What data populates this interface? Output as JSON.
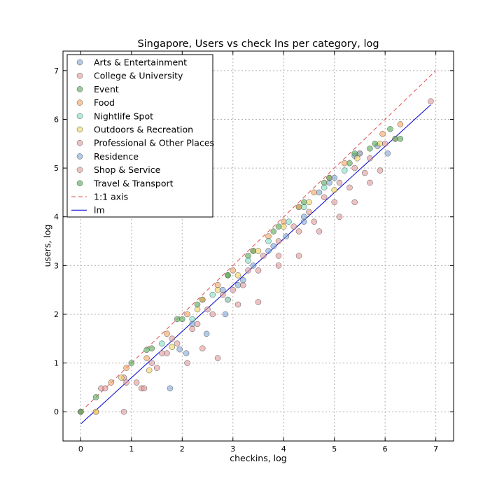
{
  "chart_data": {
    "type": "scatter",
    "title": "Singapore, Users vs check Ins per category, log",
    "xlabel": "checkins, log",
    "ylabel": "users, log",
    "xlim": [
      -0.35,
      7.35
    ],
    "ylim": [
      -0.6,
      7.4
    ],
    "xticks": [
      0,
      1,
      2,
      3,
      4,
      5,
      6,
      7
    ],
    "yticks": [
      0,
      1,
      2,
      3,
      4,
      5,
      6,
      7
    ],
    "grid": true,
    "legend_position": "top-left",
    "series": [
      {
        "name": "Arts & Entertainment",
        "color": "#7ea6d8",
        "points": [
          [
            0,
            0
          ],
          [
            1.76,
            0.48
          ],
          [
            1.95,
            1.28
          ],
          [
            2.08,
            1.2
          ],
          [
            2.48,
            1.6
          ],
          [
            2.85,
            2.0
          ],
          [
            3.1,
            2.6
          ],
          [
            3.4,
            3.0
          ],
          [
            3.7,
            3.3
          ],
          [
            4.05,
            3.6
          ],
          [
            4.4,
            3.9
          ],
          [
            4.7,
            4.5
          ],
          [
            5.0,
            4.8
          ],
          [
            5.4,
            5.25
          ],
          [
            5.85,
            5.45
          ],
          [
            6.05,
            5.3
          ]
        ]
      },
      {
        "name": "College & University",
        "color": "#e39a9a",
        "points": [
          [
            0,
            0
          ],
          [
            0.48,
            0.48
          ],
          [
            0.85,
            0.7
          ],
          [
            1.2,
            0.48
          ],
          [
            1.5,
            0.9
          ],
          [
            1.8,
            1.5
          ],
          [
            2.3,
            1.8
          ],
          [
            2.6,
            2.0
          ],
          [
            2.9,
            2.3
          ],
          [
            3.2,
            2.6
          ],
          [
            3.5,
            2.9
          ],
          [
            3.9,
            3.2
          ],
          [
            4.3,
            3.7
          ],
          [
            4.6,
            3.9
          ],
          [
            5.0,
            4.3
          ],
          [
            5.3,
            4.6
          ],
          [
            5.6,
            4.9
          ],
          [
            6.2,
            5.6
          ]
        ]
      },
      {
        "name": "Event",
        "color": "#52a852",
        "points": [
          [
            0,
            0
          ],
          [
            0.3,
            0.3
          ],
          [
            1.0,
            1.0
          ],
          [
            1.4,
            1.3
          ],
          [
            2.0,
            1.9
          ],
          [
            2.4,
            2.3
          ],
          [
            2.9,
            2.8
          ],
          [
            3.3,
            3.2
          ],
          [
            3.8,
            3.7
          ],
          [
            4.3,
            4.2
          ],
          [
            4.8,
            4.7
          ],
          [
            5.3,
            5.1
          ],
          [
            5.7,
            5.4
          ],
          [
            6.1,
            5.8
          ],
          [
            6.3,
            5.6
          ]
        ]
      },
      {
        "name": "Food",
        "color": "#f5a45c",
        "points": [
          [
            0.3,
            0
          ],
          [
            0.6,
            0.6
          ],
          [
            0.9,
            0.9
          ],
          [
            1.3,
            1.1
          ],
          [
            1.7,
            1.6
          ],
          [
            2.1,
            2.0
          ],
          [
            2.4,
            2.3
          ],
          [
            2.7,
            2.6
          ],
          [
            3.0,
            2.9
          ],
          [
            3.4,
            3.3
          ],
          [
            3.7,
            3.6
          ],
          [
            4.0,
            3.9
          ],
          [
            4.3,
            4.2
          ],
          [
            4.6,
            4.5
          ],
          [
            4.9,
            4.8
          ],
          [
            5.2,
            5.1
          ],
          [
            5.5,
            5.3
          ],
          [
            5.95,
            5.7
          ],
          [
            6.3,
            5.9
          ]
        ]
      },
      {
        "name": "Nightlife Spot",
        "color": "#7fe0c8",
        "points": [
          [
            1.6,
            1.4
          ],
          [
            2.2,
            1.9
          ],
          [
            2.6,
            2.4
          ],
          [
            2.9,
            2.3
          ],
          [
            3.3,
            3.1
          ],
          [
            3.7,
            3.5
          ],
          [
            4.1,
            3.9
          ],
          [
            4.4,
            4.2
          ],
          [
            4.8,
            4.6
          ],
          [
            5.2,
            4.95
          ]
        ]
      },
      {
        "name": "Outdoors & Recreation",
        "color": "#f2d45c",
        "points": [
          [
            0.3,
            0
          ],
          [
            0.8,
            0.7
          ],
          [
            1.35,
            0.85
          ],
          [
            1.8,
            1.33
          ],
          [
            2.3,
            2.1
          ],
          [
            2.7,
            2.5
          ],
          [
            3.1,
            2.8
          ],
          [
            3.5,
            3.3
          ],
          [
            4.0,
            3.8
          ],
          [
            4.5,
            4.3
          ],
          [
            5.0,
            4.55
          ],
          [
            5.45,
            5.2
          ],
          [
            5.9,
            5.5
          ]
        ]
      },
      {
        "name": "Professional & Other Places",
        "color": "#e39a9a",
        "points": [
          [
            0.85,
            0
          ],
          [
            1.1,
            0.6
          ],
          [
            1.4,
            1.0
          ],
          [
            1.7,
            1.2
          ],
          [
            2.1,
            1.0
          ],
          [
            2.4,
            1.3
          ],
          [
            2.7,
            1.1
          ],
          [
            3.1,
            2.2
          ],
          [
            3.5,
            2.25
          ],
          [
            3.9,
            3.0
          ],
          [
            4.3,
            3.2
          ],
          [
            4.7,
            3.7
          ],
          [
            5.1,
            4.0
          ],
          [
            5.4,
            4.3
          ],
          [
            5.7,
            4.7
          ],
          [
            5.9,
            4.95
          ],
          [
            6.9,
            6.37
          ]
        ]
      },
      {
        "name": "Residence",
        "color": "#7ea6d8",
        "points": [
          [
            2.2,
            1.8
          ],
          [
            2.8,
            2.5
          ],
          [
            3.2,
            2.7
          ],
          [
            3.8,
            3.4
          ],
          [
            4.4,
            4.0
          ],
          [
            4.9,
            4.7
          ],
          [
            5.5,
            5.3
          ]
        ]
      },
      {
        "name": "Shop & Service",
        "color": "#e39a9a",
        "points": [
          [
            0,
            0
          ],
          [
            0.4,
            0.48
          ],
          [
            0.9,
            0.6
          ],
          [
            1.25,
            0.48
          ],
          [
            1.6,
            1.2
          ],
          [
            1.9,
            1.4
          ],
          [
            2.2,
            1.7
          ],
          [
            2.5,
            2.1
          ],
          [
            2.8,
            2.4
          ],
          [
            3.0,
            2.5
          ],
          [
            3.3,
            2.9
          ],
          [
            3.6,
            3.2
          ],
          [
            3.9,
            3.5
          ],
          [
            4.2,
            3.8
          ],
          [
            4.5,
            4.1
          ],
          [
            4.8,
            4.4
          ],
          [
            5.1,
            4.7
          ],
          [
            5.4,
            5.0
          ],
          [
            5.7,
            5.2
          ],
          [
            6.0,
            5.5
          ]
        ]
      },
      {
        "name": "Travel & Transport",
        "color": "#52a852",
        "points": [
          [
            0,
            0
          ],
          [
            1.3,
            1.27
          ],
          [
            1.9,
            1.9
          ],
          [
            2.3,
            2.2
          ],
          [
            2.9,
            2.8
          ],
          [
            3.4,
            3.3
          ],
          [
            3.9,
            3.8
          ],
          [
            4.4,
            4.3
          ],
          [
            4.9,
            4.8
          ],
          [
            5.4,
            5.3
          ],
          [
            5.8,
            5.5
          ],
          [
            6.2,
            5.6
          ]
        ]
      }
    ],
    "reference_lines": [
      {
        "name": "1:1 axis",
        "color": "#e05050",
        "style": "dashed",
        "x": [
          0,
          7
        ],
        "y": [
          0,
          7
        ]
      },
      {
        "name": "lm",
        "color": "#0000cc",
        "style": "solid",
        "x": [
          0,
          6.9
        ],
        "y": [
          -0.25,
          6.3
        ]
      }
    ]
  }
}
